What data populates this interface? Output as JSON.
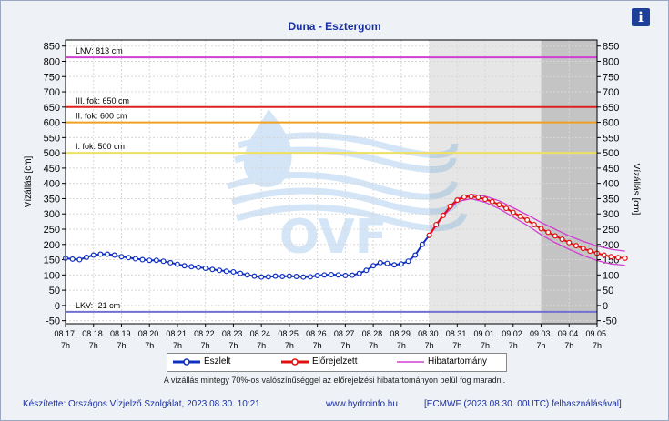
{
  "header": {
    "title": "Duna - Esztergom",
    "info_icon": "info-icon"
  },
  "chart_data": {
    "type": "line",
    "ylabel_left": "Vízállás [cm]",
    "ylabel_right": "Vízállás [cm]",
    "ylim": [
      -60,
      870
    ],
    "yticks": [
      -50,
      0,
      50,
      100,
      150,
      200,
      250,
      300,
      350,
      400,
      450,
      500,
      550,
      600,
      650,
      700,
      750,
      800,
      850
    ],
    "x_tick_dates": [
      "08.17.",
      "08.18.",
      "08.19.",
      "08.20.",
      "08.21.",
      "08.22.",
      "08.23.",
      "08.24.",
      "08.25.",
      "08.26.",
      "08.27.",
      "08.28.",
      "08.29.",
      "08.30.",
      "08.31.",
      "09.01.",
      "09.02.",
      "09.03.",
      "09.04.",
      "09.05."
    ],
    "x_tick_hour": "7h",
    "reference_lines": [
      {
        "label": "LNV: 813 cm",
        "value": 813,
        "color": "#d040d0"
      },
      {
        "label": "III. fok: 650 cm",
        "value": 650,
        "color": "#e02020"
      },
      {
        "label": "II. fok: 600 cm",
        "value": 600,
        "color": "#f0a020"
      },
      {
        "label": "I. fok: 500 cm",
        "value": 500,
        "color": "#f0e060"
      },
      {
        "label": "LKV: -21 cm",
        "value": -21,
        "color": "#7070d0"
      }
    ],
    "forecast_region_start_day": 13,
    "late_forecast_region_start_day": 17,
    "series": [
      {
        "name": "Észlelt",
        "color": "#1030c0",
        "x_days": [
          0.0,
          0.25,
          0.5,
          0.75,
          1.0,
          1.25,
          1.5,
          1.75,
          2.0,
          2.25,
          2.5,
          2.75,
          3.0,
          3.25,
          3.5,
          3.75,
          4.0,
          4.25,
          4.5,
          4.75,
          5.0,
          5.25,
          5.5,
          5.75,
          6.0,
          6.25,
          6.5,
          6.75,
          7.0,
          7.25,
          7.5,
          7.75,
          8.0,
          8.25,
          8.5,
          8.75,
          9.0,
          9.25,
          9.5,
          9.75,
          10.0,
          10.25,
          10.5,
          10.75,
          11.0,
          11.25,
          11.5,
          11.75,
          12.0,
          12.25,
          12.5,
          12.75,
          13.0
        ],
        "values": [
          155,
          152,
          150,
          158,
          165,
          168,
          168,
          165,
          160,
          157,
          153,
          150,
          148,
          148,
          145,
          140,
          135,
          130,
          127,
          125,
          122,
          118,
          115,
          112,
          110,
          105,
          100,
          96,
          93,
          94,
          96,
          95,
          96,
          95,
          93,
          94,
          98,
          100,
          101,
          100,
          98,
          99,
          105,
          115,
          130,
          140,
          138,
          133,
          136,
          145,
          165,
          200,
          230
        ]
      },
      {
        "name": "Előrejelzett",
        "color": "#e01010",
        "x_days": [
          13.0,
          13.25,
          13.5,
          13.75,
          14.0,
          14.25,
          14.5,
          14.75,
          15.0,
          15.25,
          15.5,
          15.75,
          16.0,
          16.25,
          16.5,
          16.75,
          17.0,
          17.25,
          17.5,
          17.75,
          18.0,
          18.25,
          18.5,
          18.75,
          19.0,
          19.25,
          19.5,
          19.75,
          20.0
        ],
        "values": [
          230,
          265,
          295,
          325,
          345,
          355,
          357,
          354,
          348,
          340,
          330,
          318,
          305,
          292,
          280,
          265,
          252,
          240,
          228,
          217,
          206,
          196,
          187,
          178,
          171,
          165,
          160,
          157,
          155
        ]
      }
    ],
    "error_band_name": "Hibatartomány",
    "error_band_color": "#d040d0",
    "error_band": {
      "x_days": [
        13.0,
        13.5,
        14.0,
        14.5,
        15.0,
        15.5,
        16.0,
        16.5,
        17.0,
        17.5,
        18.0,
        18.5,
        19.0,
        19.5,
        20.0
      ],
      "upper": [
        232,
        298,
        350,
        364,
        358,
        343,
        320,
        297,
        272,
        250,
        228,
        210,
        195,
        184,
        178
      ],
      "lower": [
        228,
        292,
        340,
        350,
        338,
        317,
        290,
        263,
        232,
        206,
        184,
        164,
        147,
        136,
        132
      ]
    },
    "watermark": "OVF"
  },
  "note": "A vízállás mintegy 70%-os valószínűséggel az előrejelzési hibatartományon belül fog maradni.",
  "footer": {
    "author": "Készítette: Országos Vízjelző Szolgálat, 2023.08.30. 10:21",
    "website": "www.hydroinfo.hu",
    "source": "[ECMWF (2023.08.30. 00UTC) felhasználásával]"
  }
}
